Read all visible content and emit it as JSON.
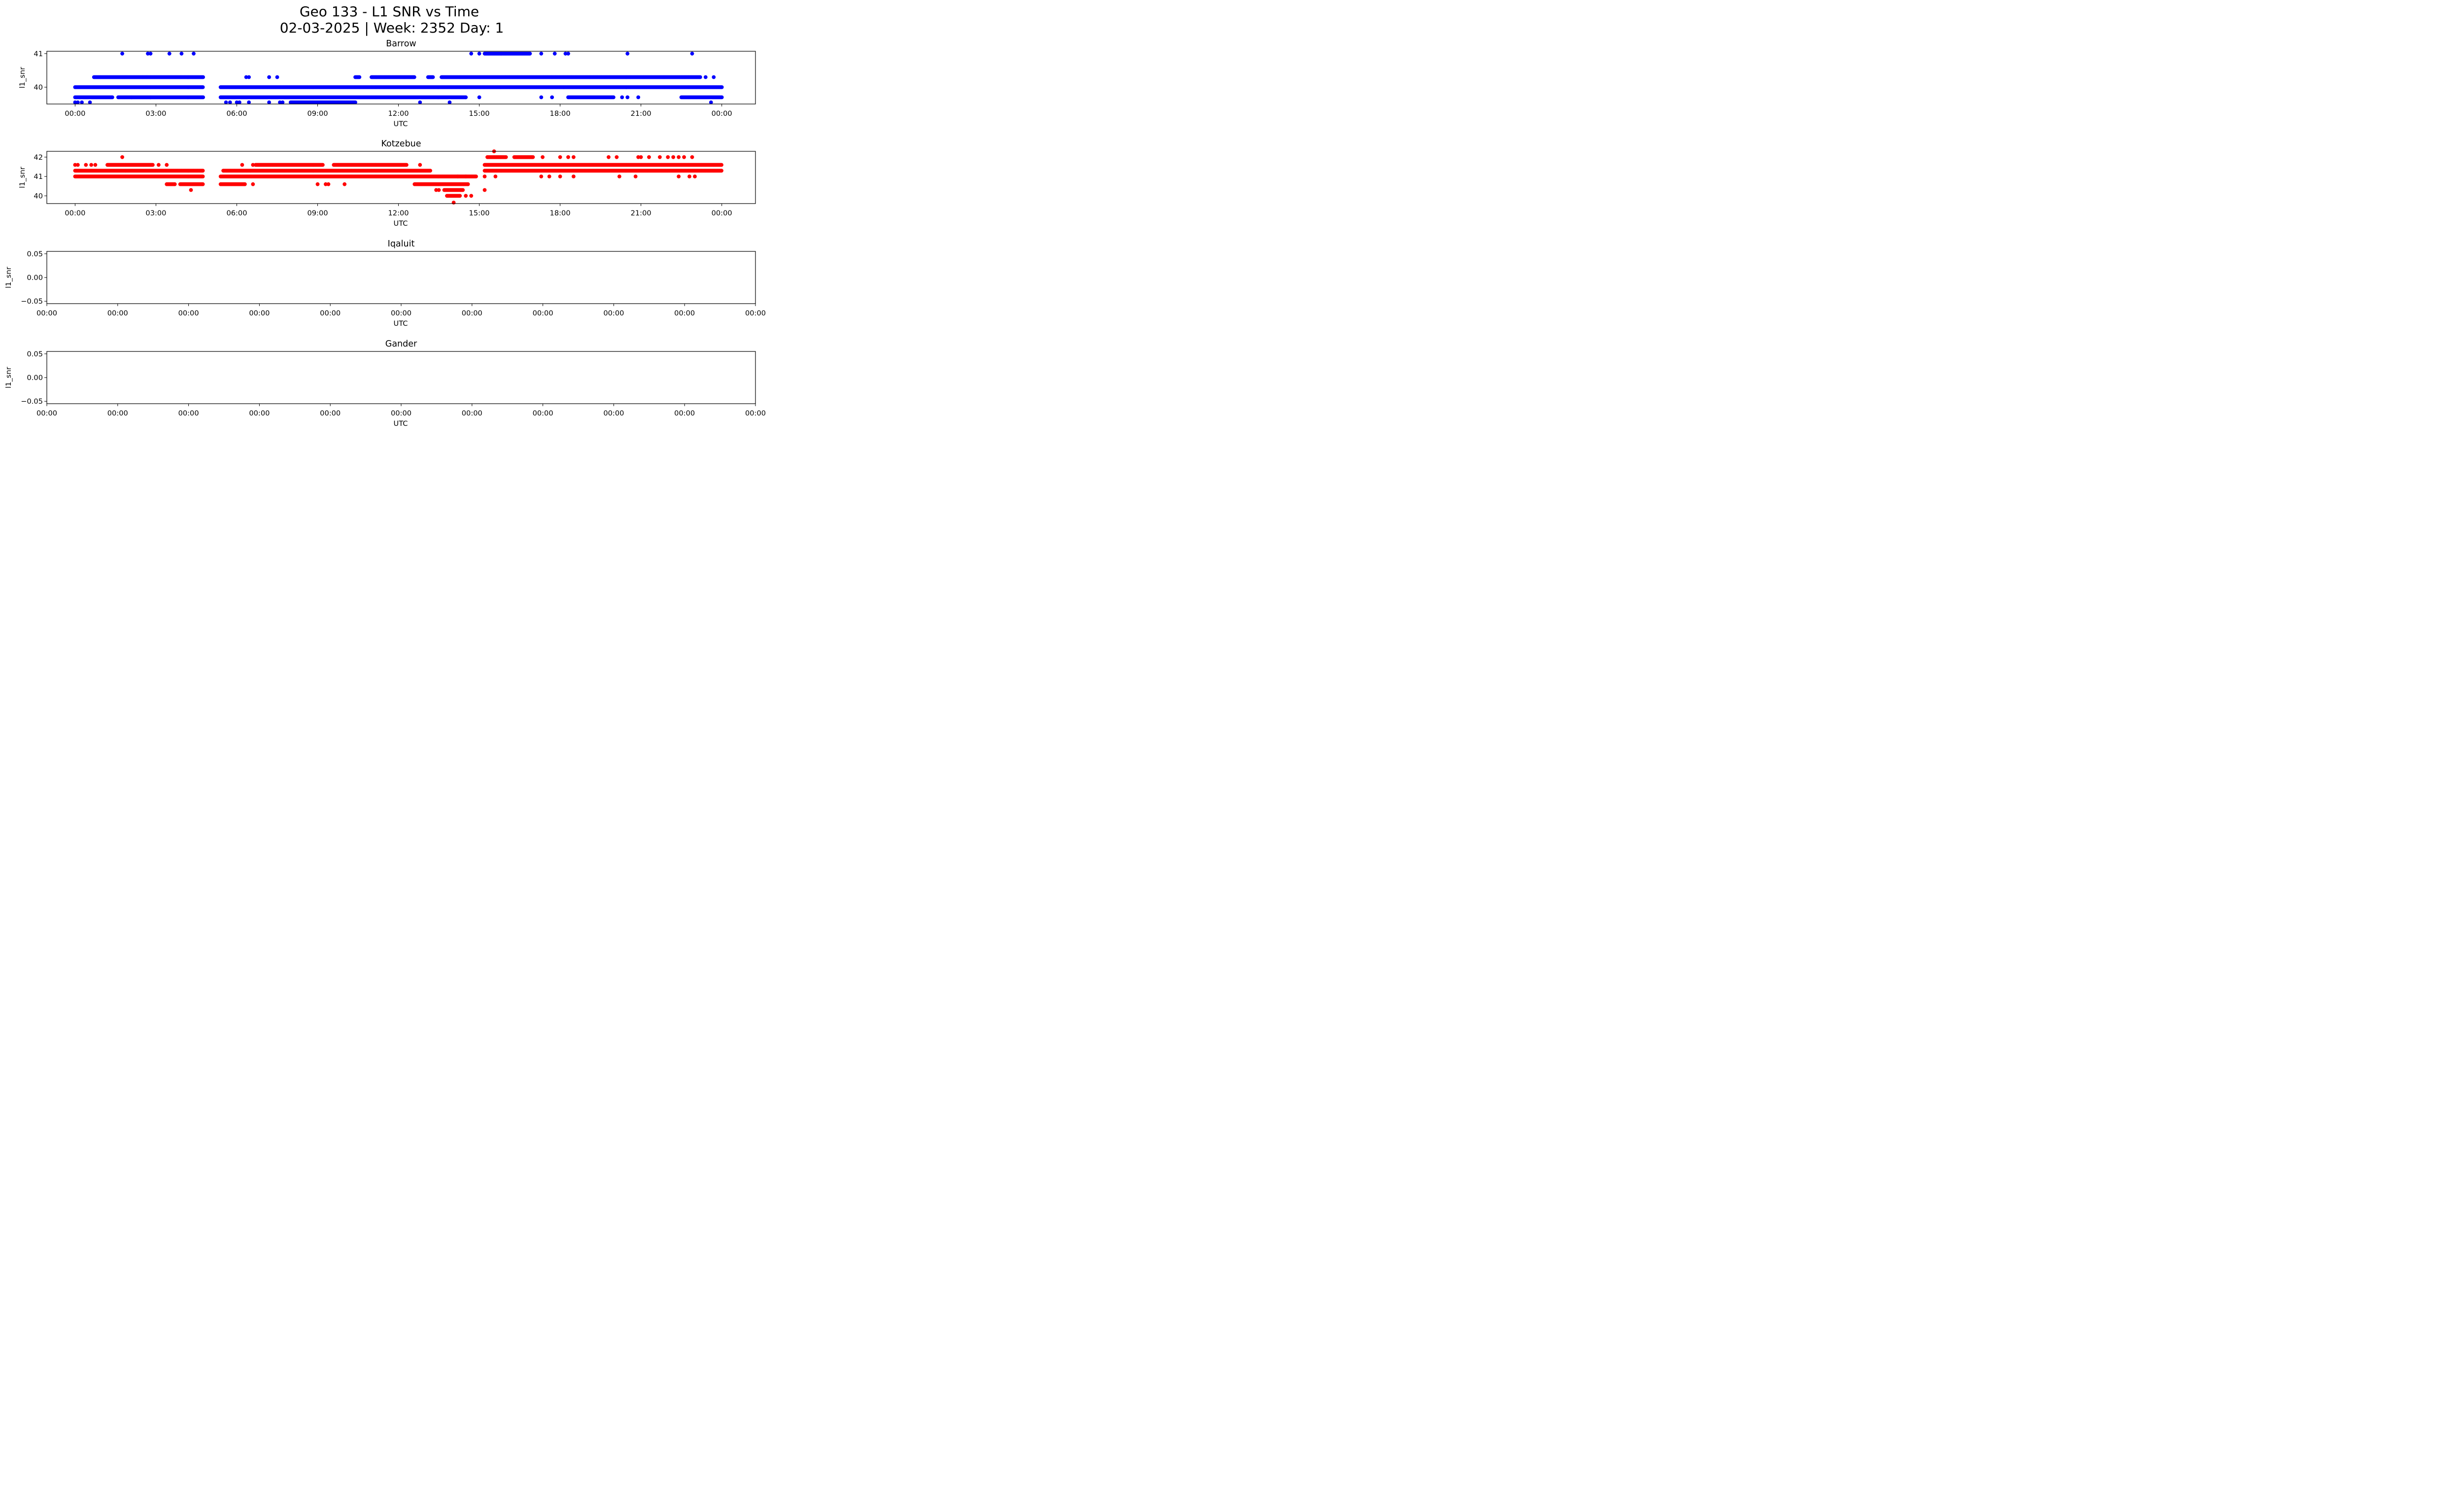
{
  "figure": {
    "title_line1": "Geo 133 - L1 SNR vs Time",
    "title_line2": "02-03-2025 | Week: 2352 Day: 1"
  },
  "chart_data": [
    {
      "type": "scatter",
      "title": "Barrow",
      "xlabel": "UTC",
      "ylabel": "l1_snr",
      "color": "#0000ff",
      "xlim": [
        -1.05,
        25.25
      ],
      "ylim": [
        39.5,
        41.07
      ],
      "xticks": [
        0,
        3,
        6,
        9,
        12,
        15,
        18,
        21,
        24
      ],
      "xtick_labels": [
        "00:00",
        "03:00",
        "06:00",
        "09:00",
        "12:00",
        "15:00",
        "18:00",
        "21:00",
        "00:00"
      ],
      "yticks": [
        40,
        41
      ],
      "ytick_labels": [
        "40",
        "41"
      ],
      "series": [
        {
          "y": 41.0,
          "ranges": [],
          "points": [
            1.75,
            2.7,
            2.8,
            3.5,
            3.95,
            4.4,
            14.7,
            15.0,
            17.3,
            17.8,
            18.2,
            18.3,
            20.5,
            22.9
          ]
        },
        {
          "y": 41.0,
          "ranges": [
            [
              15.2,
              16.9
            ]
          ],
          "points": []
        },
        {
          "y": 40.3,
          "ranges": [
            [
              0.7,
              4.75
            ],
            [
              10.4,
              10.55
            ],
            [
              11.0,
              12.6
            ],
            [
              13.1,
              13.3
            ],
            [
              13.6,
              23.2
            ]
          ],
          "points": [
            6.35,
            6.45,
            7.2,
            7.5,
            23.4,
            23.7
          ]
        },
        {
          "y": 40.0,
          "ranges": [
            [
              0.0,
              4.75
            ],
            [
              5.4,
              24.0
            ]
          ],
          "points": []
        },
        {
          "y": 39.7,
          "ranges": [
            [
              0.0,
              1.4
            ],
            [
              1.6,
              4.75
            ],
            [
              5.4,
              14.5
            ],
            [
              18.3,
              20.0
            ],
            [
              22.5,
              24.0
            ]
          ],
          "points": [
            2.1,
            2.8,
            14.5,
            15.0,
            17.3,
            17.7,
            20.3,
            20.5,
            20.9
          ]
        },
        {
          "y": 39.55,
          "ranges": [
            [
              8.0,
              10.4
            ]
          ],
          "points": [
            0.0,
            0.1,
            0.25,
            0.55,
            5.6,
            5.75,
            6.0,
            6.1,
            6.45,
            7.2,
            7.6,
            7.7,
            12.8,
            13.9,
            23.6
          ]
        }
      ]
    },
    {
      "type": "scatter",
      "title": "Kotzebue",
      "xlabel": "UTC",
      "ylabel": "l1_snr",
      "color": "#ff0000",
      "xlim": [
        -1.05,
        25.25
      ],
      "ylim": [
        39.6,
        42.3
      ],
      "xticks": [
        0,
        3,
        6,
        9,
        12,
        15,
        18,
        21,
        24
      ],
      "xtick_labels": [
        "00:00",
        "03:00",
        "06:00",
        "09:00",
        "12:00",
        "15:00",
        "18:00",
        "21:00",
        "00:00"
      ],
      "yticks": [
        40,
        41,
        42
      ],
      "ytick_labels": [
        "40",
        "41",
        "42"
      ],
      "series": [
        {
          "y": 42.3,
          "ranges": [],
          "points": [
            15.55
          ]
        },
        {
          "y": 42.0,
          "ranges": [
            [
              15.3,
              16.0
            ],
            [
              16.3,
              17.0
            ]
          ],
          "points": [
            1.75,
            17.35,
            18.0,
            18.3,
            18.5,
            19.8,
            20.1,
            20.9,
            21.0,
            21.3,
            21.7,
            22.0,
            22.2,
            22.4,
            22.6,
            22.9
          ]
        },
        {
          "y": 41.6,
          "ranges": [
            [
              1.2,
              2.9
            ],
            [
              6.7,
              9.2
            ],
            [
              9.6,
              12.3
            ],
            [
              15.2,
              24.0
            ]
          ],
          "points": [
            0.0,
            0.1,
            0.4,
            0.6,
            0.75,
            3.1,
            3.4,
            6.2,
            6.6,
            12.8
          ]
        },
        {
          "y": 41.3,
          "ranges": [
            [
              0.0,
              4.75
            ],
            [
              5.5,
              13.2
            ],
            [
              15.2,
              24.0
            ]
          ],
          "points": []
        },
        {
          "y": 41.0,
          "ranges": [
            [
              0.0,
              4.75
            ],
            [
              5.4,
              14.9
            ]
          ],
          "points": [
            14.2,
            14.5,
            15.2,
            15.6,
            17.3,
            17.6,
            18.0,
            18.5,
            20.2,
            20.8,
            22.4,
            22.8,
            23.0
          ]
        },
        {
          "y": 40.6,
          "ranges": [
            [
              3.4,
              3.7
            ],
            [
              3.9,
              4.75
            ],
            [
              5.4,
              6.3
            ],
            [
              12.6,
              14.6
            ]
          ],
          "points": [
            6.6,
            9.0,
            9.3,
            9.4,
            10.0
          ]
        },
        {
          "y": 40.3,
          "ranges": [
            [
              13.7,
              14.4
            ]
          ],
          "points": [
            4.3,
            13.4,
            13.5,
            15.2
          ]
        },
        {
          "y": 40.0,
          "ranges": [
            [
              13.8,
              14.3
            ]
          ],
          "points": [
            14.5,
            14.7
          ]
        },
        {
          "y": 39.65,
          "ranges": [],
          "points": [
            14.05
          ]
        }
      ]
    },
    {
      "type": "scatter",
      "title": "Iqaluit",
      "xlabel": "UTC",
      "ylabel": "l1_snr",
      "color": "#000000",
      "ylim": [
        -0.055,
        0.055
      ],
      "xtick_labels": [
        "00:00",
        "00:00",
        "00:00",
        "00:00",
        "00:00",
        "00:00",
        "00:00",
        "00:00",
        "00:00",
        "00:00",
        "00:00"
      ],
      "yticks": [
        0.05,
        0.0,
        -0.05
      ],
      "ytick_labels": [
        "0.05",
        "0.00",
        "−0.05"
      ],
      "series": []
    },
    {
      "type": "scatter",
      "title": "Gander",
      "xlabel": "UTC",
      "ylabel": "l1_snr",
      "color": "#000000",
      "ylim": [
        -0.055,
        0.055
      ],
      "xtick_labels": [
        "00:00",
        "00:00",
        "00:00",
        "00:00",
        "00:00",
        "00:00",
        "00:00",
        "00:00",
        "00:00",
        "00:00",
        "00:00"
      ],
      "yticks": [
        0.05,
        0.0,
        -0.05
      ],
      "ytick_labels": [
        "0.05",
        "0.00",
        "−0.05"
      ],
      "series": []
    }
  ]
}
